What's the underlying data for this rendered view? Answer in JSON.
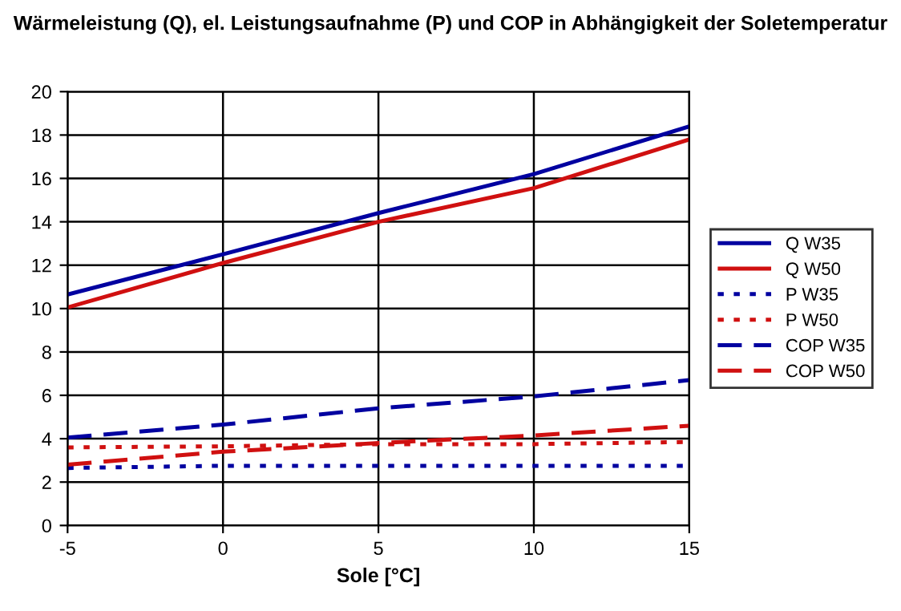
{
  "chart_data": {
    "type": "line",
    "title": "Wärmeleistung (Q), el. Leistungsaufnahme (P) und COP in Abhängigkeit der Soletemperatur",
    "xlabel": "Sole [°C]",
    "x": [
      -5,
      0,
      5,
      10,
      15
    ],
    "xlim": [
      -5,
      15
    ],
    "xticks": [
      -5,
      0,
      5,
      10,
      15
    ],
    "ylim": [
      0,
      20
    ],
    "yticks": [
      0,
      2,
      4,
      6,
      8,
      10,
      12,
      14,
      16,
      18,
      20
    ],
    "grid": true,
    "legend": "right",
    "marker": "none",
    "series": [
      {
        "name": "Q W35",
        "color": "#0000a0",
        "line_style": "solid",
        "values": [
          10.65,
          12.5,
          14.4,
          16.2,
          18.4
        ]
      },
      {
        "name": "Q W50",
        "color": "#d01010",
        "line_style": "solid",
        "values": [
          10.05,
          12.1,
          14.0,
          15.55,
          17.8
        ]
      },
      {
        "name": "P W35",
        "color": "#0000a0",
        "line_style": "dotted",
        "values": [
          2.65,
          2.75,
          2.75,
          2.75,
          2.75
        ]
      },
      {
        "name": "P W50",
        "color": "#d01010",
        "line_style": "dotted",
        "values": [
          3.6,
          3.65,
          3.75,
          3.75,
          3.85
        ]
      },
      {
        "name": "COP W35",
        "color": "#0000a0",
        "line_style": "dashed",
        "values": [
          4.05,
          4.65,
          5.4,
          5.95,
          6.7
        ]
      },
      {
        "name": "COP W50",
        "color": "#d01010",
        "line_style": "dashed",
        "values": [
          2.8,
          3.4,
          3.8,
          4.15,
          4.6
        ]
      }
    ]
  }
}
